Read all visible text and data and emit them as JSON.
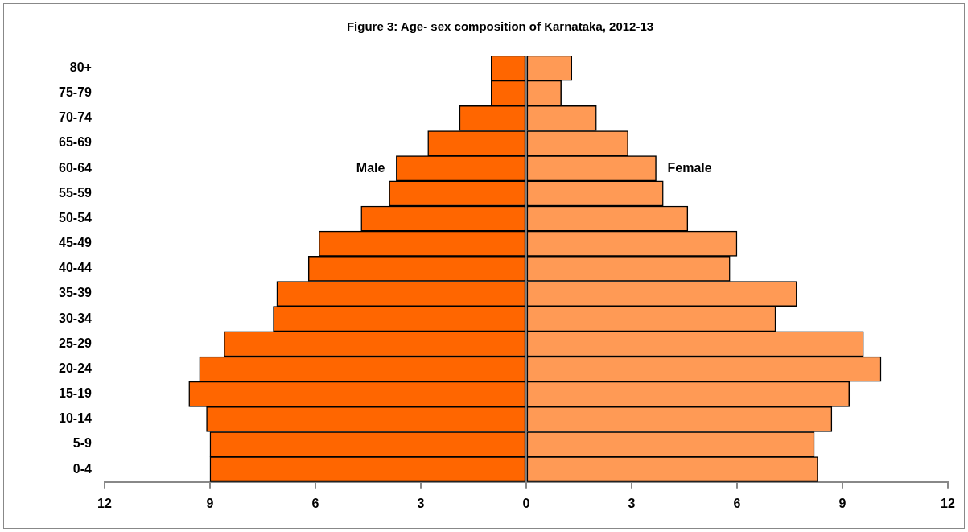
{
  "chart_data": {
    "type": "bar",
    "orientation": "horizontal",
    "stacked": true,
    "title": "Figure 3: Age- sex composition of Karnataka, 2012-13",
    "categories": [
      "80+",
      "75-79",
      "70-74",
      "65-69",
      "60-64",
      "55-59",
      "50-54",
      "45-49",
      "40-44",
      "35-39",
      "30-34",
      "25-29",
      "20-24",
      "15-19",
      "10-14",
      "5-9",
      "0-4"
    ],
    "series": [
      {
        "name": "Male",
        "color": "#ff6600",
        "values": [
          -1.0,
          -1.0,
          -1.9,
          -2.8,
          -3.7,
          -3.9,
          -4.7,
          -5.9,
          -6.2,
          -7.1,
          -7.2,
          -8.6,
          -9.3,
          -9.6,
          -9.1,
          -9.0,
          -9.0
        ]
      },
      {
        "name": "Female",
        "color": "#ff9a55",
        "values": [
          1.3,
          1.0,
          2.0,
          2.9,
          3.7,
          3.9,
          4.6,
          6.0,
          5.8,
          7.7,
          7.1,
          9.6,
          10.1,
          9.2,
          8.7,
          8.2,
          8.3
        ]
      }
    ],
    "xlim": [
      -12,
      12
    ],
    "xticks": [
      {
        "value": -12,
        "label": "12"
      },
      {
        "value": -9,
        "label": "9"
      },
      {
        "value": -6,
        "label": "6"
      },
      {
        "value": -3,
        "label": "3"
      },
      0,
      3,
      6,
      9,
      12
    ],
    "legend": false
  }
}
